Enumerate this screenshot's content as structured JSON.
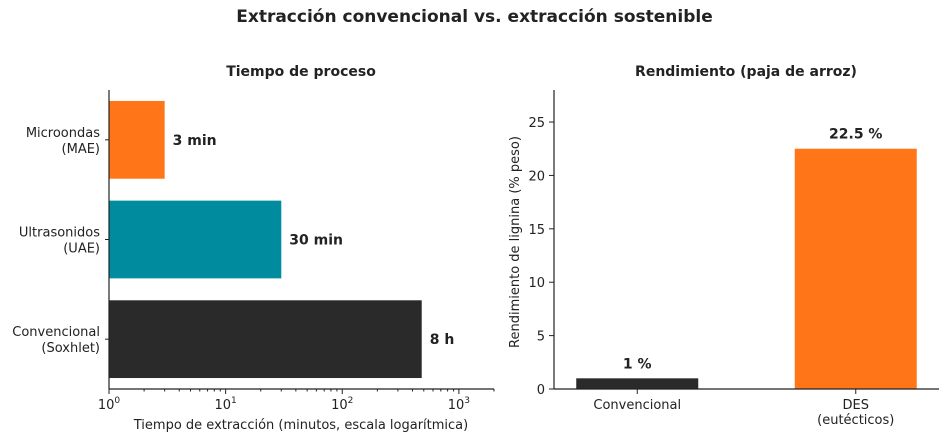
{
  "suptitle": "Extracción convencional vs. extracción sostenible",
  "chart_data": [
    {
      "type": "bar",
      "orientation": "horizontal",
      "title": "Tiempo de proceso",
      "xlabel": "Tiempo de extracción (minutos, escala logarítmica)",
      "ylabel": "",
      "xscale": "log",
      "xlim": [
        1,
        2000
      ],
      "xticks": [
        {
          "value": 1,
          "base": "10",
          "exp": "0"
        },
        {
          "value": 10,
          "base": "10",
          "exp": "1"
        },
        {
          "value": 100,
          "base": "10",
          "exp": "2"
        },
        {
          "value": 1000,
          "base": "10",
          "exp": "3"
        }
      ],
      "categories": [
        [
          "Microondas",
          "(MAE)"
        ],
        [
          "Ultrasonidos",
          "(UAE)"
        ],
        [
          "Convencional",
          "(Soxhlet)"
        ]
      ],
      "values": [
        3,
        30,
        480
      ],
      "labels": [
        "3 min",
        "30 min",
        "8 h"
      ],
      "colors": [
        "#ff7518",
        "#008b9e",
        "#2a2a2a"
      ],
      "grid": false
    },
    {
      "type": "bar",
      "title": "Rendimiento (paja de arroz)",
      "xlabel": "",
      "ylabel": "Rendimiento de lignina (% peso)",
      "ylim": [
        0,
        28
      ],
      "yticks": [
        0,
        5,
        10,
        15,
        20,
        25
      ],
      "categories": [
        [
          "Convencional"
        ],
        [
          "DES",
          "(eutécticos)"
        ]
      ],
      "values": [
        1,
        22.5
      ],
      "labels": [
        "1 %",
        "22.5 %"
      ],
      "colors": [
        "#2a2a2a",
        "#ff7518"
      ],
      "grid": false
    }
  ]
}
